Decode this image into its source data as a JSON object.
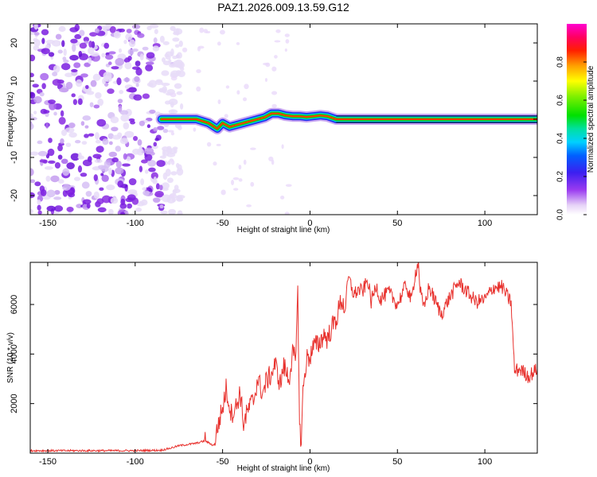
{
  "title": "PAZ1.2026.009.13.59.G12",
  "chart_data": [
    {
      "type": "heatmap",
      "name": "spectrogram",
      "xlabel": "Height of straight line (km)",
      "ylabel": "Frequency (Hz)",
      "xlim": [
        -160,
        130
      ],
      "ylim": [
        -25,
        25
      ],
      "xticks": [
        "-150",
        "-100",
        "-50",
        "0",
        "50",
        "100"
      ],
      "yticks": [
        "-20",
        "-10",
        "0",
        "10",
        "20"
      ],
      "colorbar_label": "Normalized spectral amplitude",
      "colorbar_ticks": [
        "0.0",
        "0.2",
        "0.4",
        "0.6",
        "0.8"
      ],
      "noise_region_km": [
        -160,
        -85
      ],
      "ridge": {
        "x": [
          -85,
          -75,
          -65,
          -58,
          -53,
          -50,
          -46,
          -42,
          -38,
          -34,
          -30,
          -26,
          -22,
          -18,
          -14,
          -10,
          -6,
          -2,
          2,
          6,
          10,
          15,
          130
        ],
        "freq": [
          0,
          0,
          0,
          -1,
          -2.5,
          -1,
          -2,
          -1.5,
          -1,
          -0.5,
          0,
          0.5,
          1.5,
          1.5,
          1,
          0.8,
          0.8,
          0.6,
          0.8,
          1,
          0.8,
          0,
          0
        ]
      }
    },
    {
      "type": "line",
      "name": "snr",
      "xlabel": "Height of straight line (km)",
      "ylabel": "SNR (10 * v/v)",
      "xlim": [
        -160,
        130
      ],
      "ylim": [
        0,
        7700
      ],
      "xticks": [
        "-150",
        "-100",
        "-50",
        "0",
        "50",
        "100"
      ],
      "yticks": [
        "2000",
        "4000",
        "6000"
      ],
      "color": "#e8312d",
      "series": [
        {
          "name": "SNR",
          "x": [
            -160,
            -100,
            -85,
            -80,
            -75,
            -70,
            -65,
            -60,
            -55,
            -52,
            -50,
            -48,
            -45,
            -42,
            -40,
            -38,
            -35,
            -32,
            -30,
            -27,
            -25,
            -22,
            -20,
            -17,
            -15,
            -12,
            -10,
            -8,
            -7,
            -6,
            -5,
            -4,
            -2,
            0,
            2,
            5,
            8,
            10,
            12,
            15,
            18,
            20,
            22,
            25,
            28,
            30,
            33,
            35,
            38,
            40,
            45,
            50,
            55,
            58,
            60,
            62,
            63,
            65,
            68,
            70,
            75,
            80,
            85,
            90,
            95,
            100,
            105,
            110,
            113,
            115,
            117,
            120,
            125,
            130
          ],
          "y": [
            100,
            100,
            120,
            200,
            300,
            350,
            400,
            500,
            300,
            1300,
            1800,
            2600,
            1600,
            1900,
            2500,
            1200,
            1800,
            2200,
            3000,
            2400,
            2900,
            3200,
            3600,
            2800,
            3500,
            3000,
            4000,
            3700,
            6950,
            1000,
            500,
            2500,
            3800,
            3900,
            4300,
            4400,
            4800,
            4600,
            5000,
            5400,
            6200,
            5800,
            7100,
            6400,
            6600,
            6500,
            7000,
            6100,
            6800,
            6200,
            6500,
            6000,
            6800,
            6100,
            7200,
            7700,
            6600,
            5800,
            6700,
            6400,
            5600,
            6300,
            6900,
            6500,
            6100,
            6200,
            6700,
            6700,
            6300,
            6100,
            3300,
            3400,
            3100,
            3400
          ]
        }
      ]
    }
  ]
}
